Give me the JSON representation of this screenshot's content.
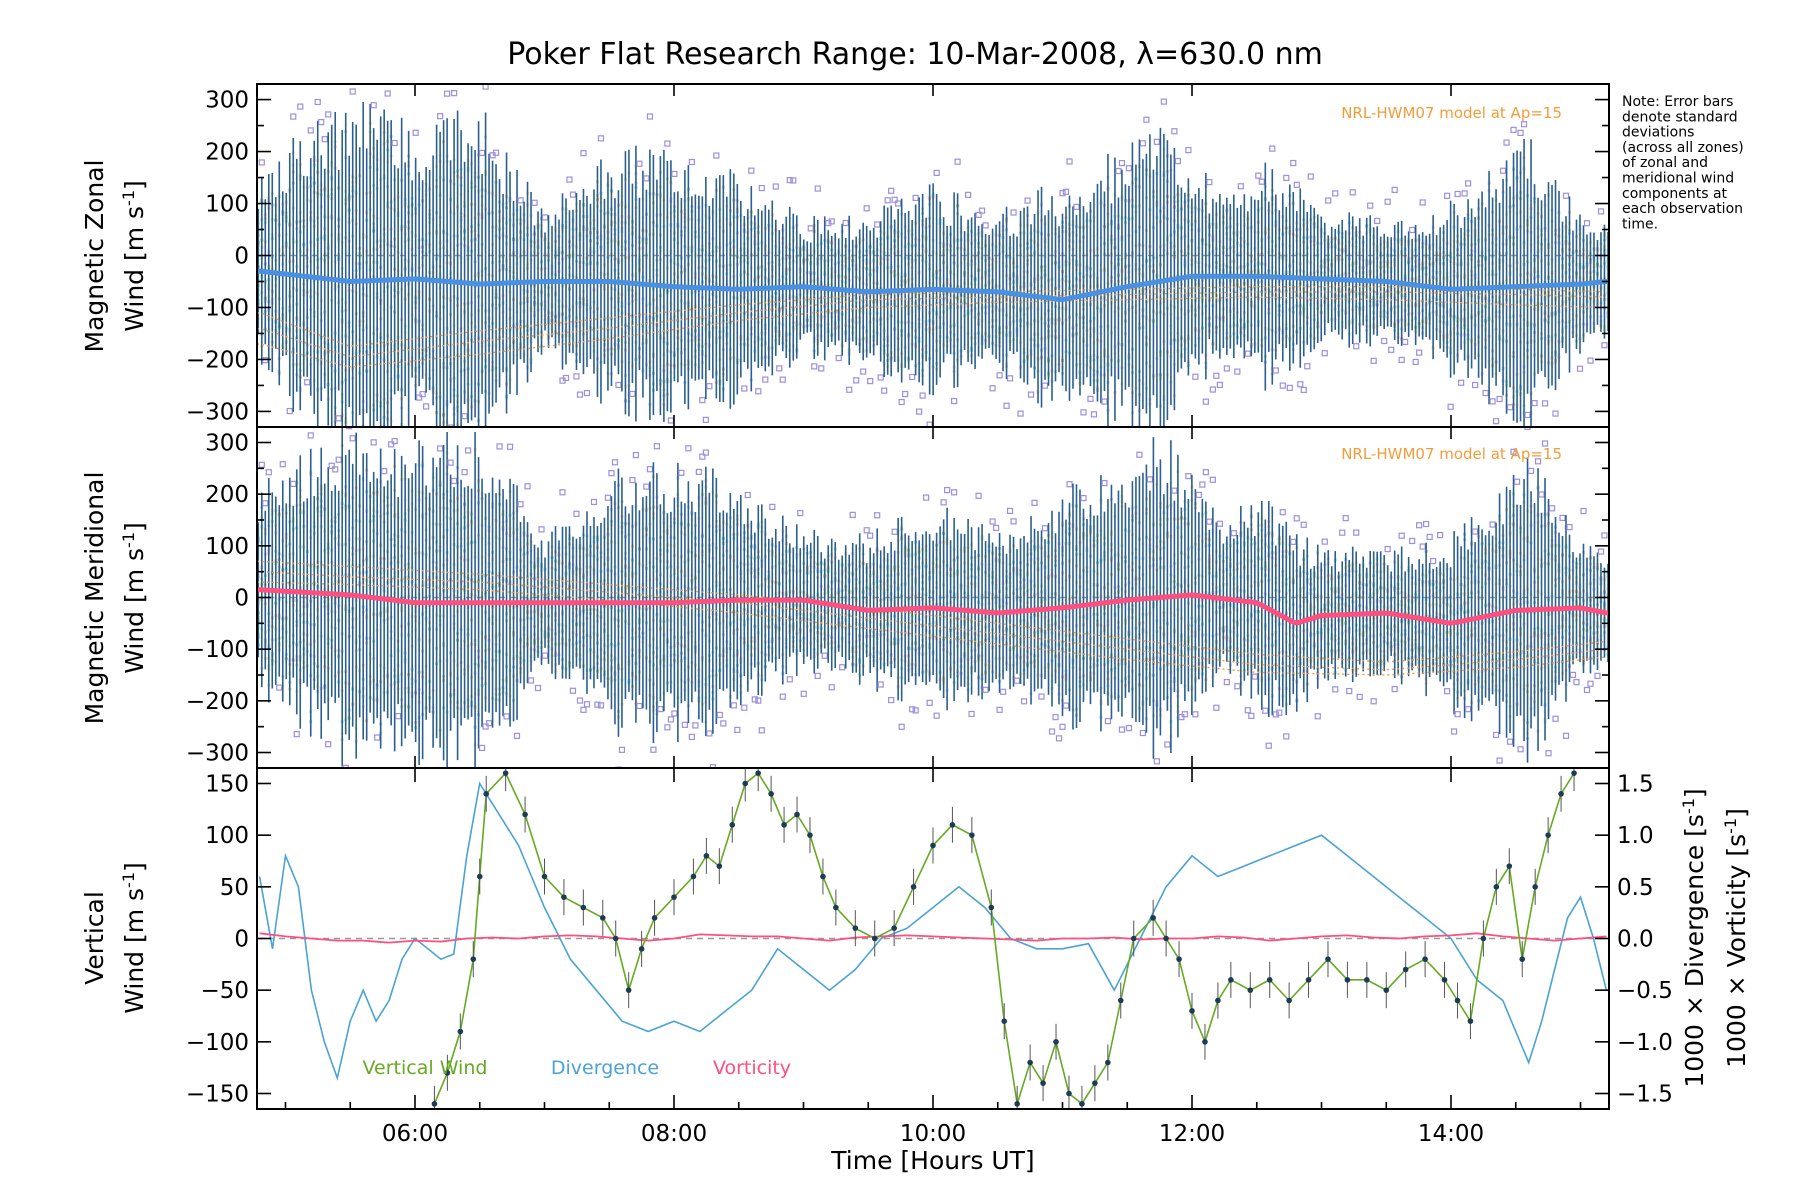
{
  "title": "Poker Flat Research Range: 10-Mar-2008, λ=630.0 nm",
  "note_lines": [
    "Note: Error bars",
    "denote standard",
    "deviations",
    "(across all zones)",
    "of zonal and",
    "meridional wind",
    "components at",
    "each observation",
    "time."
  ],
  "colors": {
    "zonal": "#4a90e2",
    "zonal_dark": "#2850c8",
    "meridional": "#ff4f7e",
    "vertical": "#66aa22",
    "divergence": "#4aa3d4",
    "vorticity": "#ff4f7e",
    "model": "#f39c3a",
    "outlier": "#9b8fe0",
    "errorbar": "#2a5f8f",
    "points": "#1e3b56"
  },
  "chart_data": [
    {
      "type": "scatter",
      "panel": "zonal",
      "ylabel_line1": "Magnetic Zonal",
      "ylabel_line2": "Wind [m s",
      "ylabel_sup": "-1",
      "ylabel_close": "]",
      "model_label": "NRL-HWM07 model at Ap=15",
      "xlim": [
        4.78,
        15.22
      ],
      "ylim": [
        -330,
        330
      ],
      "yticks": [
        -300,
        -200,
        -100,
        0,
        100,
        200,
        300
      ],
      "mean_series": {
        "name": "",
        "x": [
          4.8,
          5.5,
          6.0,
          6.5,
          7.0,
          7.5,
          8.0,
          8.5,
          9.0,
          9.5,
          10.0,
          10.5,
          11.0,
          11.5,
          12.0,
          12.5,
          13.0,
          13.5,
          14.0,
          14.5,
          15.0,
          15.2
        ],
        "y": [
          -30,
          -50,
          -45,
          -55,
          -50,
          -50,
          -60,
          -65,
          -60,
          -70,
          -65,
          -70,
          -85,
          -60,
          -40,
          -40,
          -45,
          -50,
          -65,
          -60,
          -55,
          -50
        ]
      },
      "spread_envelope": {
        "x": [
          4.8,
          5.2,
          5.6,
          6.0,
          6.5,
          7.0,
          7.5,
          8.0,
          8.5,
          9.0,
          9.5,
          10.0,
          10.5,
          11.0,
          11.5,
          11.8,
          12.2,
          12.6,
          13.0,
          13.5,
          14.0,
          14.6,
          15.0,
          15.2
        ],
        "y": [
          160,
          240,
          290,
          250,
          280,
          110,
          210,
          230,
          190,
          110,
          120,
          170,
          130,
          190,
          230,
          260,
          130,
          180,
          110,
          100,
          140,
          250,
          110,
          90
        ]
      },
      "model_curves": [
        {
          "x": [
            4.8,
            5.5,
            6.5,
            7.5,
            8.5,
            9.5,
            10.5,
            11.5,
            12.5,
            13.5,
            14.5,
            15.2
          ],
          "y": [
            -140,
            -195,
            -165,
            -140,
            -110,
            -85,
            -80,
            -75,
            -70,
            -70,
            -75,
            -80
          ]
        },
        {
          "x": [
            4.8,
            5.5,
            6.5,
            7.5,
            8.5,
            9.5,
            10.5,
            11.5,
            12.5,
            13.5,
            14.5,
            15.2
          ],
          "y": [
            -170,
            -215,
            -190,
            -160,
            -125,
            -100,
            -90,
            -85,
            -80,
            -85,
            -95,
            -100
          ]
        },
        {
          "x": [
            4.8,
            5.5,
            6.5,
            7.5,
            8.5,
            9.5,
            10.5,
            11.5,
            12.5,
            13.5,
            14.5,
            15.2
          ],
          "y": [
            -110,
            -175,
            -145,
            -120,
            -95,
            -75,
            -70,
            -65,
            -60,
            -60,
            -65,
            -70
          ]
        }
      ]
    },
    {
      "type": "scatter",
      "panel": "meridional",
      "ylabel_line1": "Magnetic Meridional",
      "ylabel_line2": "Wind [m s",
      "ylabel_sup": "-1",
      "ylabel_close": "]",
      "model_label": "NRL-HWM07 model at Ap=15",
      "xlim": [
        4.78,
        15.22
      ],
      "ylim": [
        -330,
        330
      ],
      "yticks": [
        -300,
        -200,
        -100,
        0,
        100,
        200,
        300
      ],
      "mean_series": {
        "name": "",
        "x": [
          4.8,
          5.5,
          6.0,
          6.5,
          7.0,
          7.5,
          8.0,
          8.5,
          9.0,
          9.5,
          10.0,
          10.5,
          11.0,
          11.5,
          12.0,
          12.5,
          12.8,
          13.0,
          13.5,
          14.0,
          14.5,
          15.0,
          15.2
        ],
        "y": [
          15,
          5,
          -10,
          -10,
          -10,
          -10,
          -10,
          -5,
          -5,
          -25,
          -20,
          -30,
          -20,
          -5,
          5,
          -10,
          -50,
          -35,
          -30,
          -50,
          -25,
          -20,
          -30
        ]
      },
      "spread_envelope": {
        "x": [
          4.8,
          5.2,
          5.6,
          6.0,
          6.5,
          7.0,
          7.5,
          8.0,
          8.5,
          9.0,
          9.5,
          10.0,
          10.5,
          11.0,
          11.5,
          11.8,
          12.2,
          12.6,
          13.0,
          13.5,
          14.0,
          14.6,
          15.0,
          15.2
        ],
        "y": [
          160,
          240,
          290,
          250,
          280,
          110,
          210,
          230,
          190,
          110,
          120,
          170,
          130,
          190,
          230,
          260,
          130,
          180,
          110,
          100,
          140,
          250,
          110,
          90
        ]
      },
      "model_curves": [
        {
          "x": [
            4.8,
            5.5,
            6.5,
            7.5,
            8.5,
            9.5,
            10.5,
            11.5,
            12.5,
            13.5,
            14.5,
            15.2
          ],
          "y": [
            50,
            40,
            30,
            10,
            -10,
            -40,
            -70,
            -100,
            -130,
            -140,
            -120,
            -100
          ]
        },
        {
          "x": [
            4.8,
            5.5,
            6.5,
            7.5,
            8.5,
            9.5,
            10.5,
            11.5,
            12.5,
            13.5,
            14.5,
            15.2
          ],
          "y": [
            30,
            25,
            15,
            -5,
            -30,
            -60,
            -90,
            -120,
            -145,
            -150,
            -135,
            -115
          ]
        },
        {
          "x": [
            4.8,
            5.5,
            6.5,
            7.5,
            8.5,
            9.5,
            10.5,
            11.5,
            12.5,
            13.5,
            14.5,
            15.2
          ],
          "y": [
            70,
            60,
            45,
            25,
            5,
            -20,
            -50,
            -80,
            -110,
            -125,
            -105,
            -85
          ]
        }
      ]
    },
    {
      "type": "line",
      "panel": "vertical",
      "ylabel_line1": "Vertical",
      "ylabel_line2": "Wind [m s",
      "ylabel_sup": "-1",
      "ylabel_close": "]",
      "xlabel": "Time [Hours UT]",
      "xlim": [
        4.78,
        15.22
      ],
      "xticks": [
        6,
        8,
        10,
        12,
        14
      ],
      "xtick_labels": [
        "06:00",
        "08:00",
        "10:00",
        "12:00",
        "14:00"
      ],
      "ylim": [
        -165,
        165
      ],
      "yticks": [
        -150,
        -100,
        -50,
        0,
        50,
        100,
        150
      ],
      "y2lim": [
        -1.65,
        1.65
      ],
      "y2ticks": [
        -1.5,
        -1.0,
        -0.5,
        0.0,
        0.5,
        1.0,
        1.5
      ],
      "y2tick_labels": [
        "-1.5",
        "-1.0",
        "-0.5",
        "0.0",
        "0.5",
        "1.0",
        "1.5"
      ],
      "y2label_div": "1000 × Divergence [s",
      "y2label_vor": "1000 × Vorticity [s",
      "y2label_sup": "-1",
      "y2label_close": "]",
      "legend": [
        "Vertical Wind",
        "Divergence",
        "Vorticity"
      ],
      "series": [
        {
          "name": "Vertical Wind",
          "x": [
            6.15,
            6.25,
            6.35,
            6.45,
            6.5,
            6.55,
            6.7,
            6.85,
            7.0,
            7.15,
            7.3,
            7.45,
            7.55,
            7.65,
            7.75,
            7.85,
            8.0,
            8.15,
            8.25,
            8.35,
            8.45,
            8.55,
            8.65,
            8.75,
            8.85,
            8.95,
            9.05,
            9.15,
            9.25,
            9.4,
            9.55,
            9.7,
            9.85,
            10.0,
            10.15,
            10.3,
            10.45,
            10.55,
            10.65,
            10.75,
            10.85,
            10.95,
            11.05,
            11.15,
            11.25,
            11.35,
            11.45,
            11.55,
            11.7,
            11.8,
            11.9,
            12.0,
            12.1,
            12.2,
            12.3,
            12.45,
            12.6,
            12.75,
            12.9,
            13.05,
            13.2,
            13.35,
            13.5,
            13.65,
            13.8,
            13.95,
            14.05,
            14.15,
            14.25,
            14.35,
            14.45,
            14.55,
            14.65,
            14.75,
            14.85,
            14.95
          ],
          "y": [
            -160,
            -130,
            -90,
            -20,
            60,
            140,
            160,
            120,
            60,
            40,
            30,
            20,
            0,
            -50,
            -10,
            20,
            40,
            60,
            80,
            70,
            110,
            150,
            160,
            140,
            110,
            120,
            100,
            60,
            30,
            10,
            0,
            10,
            50,
            90,
            110,
            100,
            30,
            -80,
            -160,
            -120,
            -140,
            -100,
            -150,
            -160,
            -140,
            -120,
            -60,
            0,
            20,
            0,
            -20,
            -70,
            -100,
            -60,
            -40,
            -50,
            -40,
            -60,
            -40,
            -20,
            -40,
            -40,
            -50,
            -30,
            -20,
            -40,
            -60,
            -80,
            0,
            50,
            70,
            -20,
            50,
            100,
            140,
            160
          ]
        },
        {
          "name": "Divergence",
          "x": [
            4.8,
            4.9,
            5.0,
            5.1,
            5.2,
            5.3,
            5.4,
            5.5,
            5.6,
            5.7,
            5.8,
            5.9,
            6.0,
            6.1,
            6.2,
            6.3,
            6.4,
            6.5,
            6.6,
            6.7,
            6.8,
            6.9,
            7.0,
            7.2,
            7.4,
            7.6,
            7.8,
            8.0,
            8.2,
            8.4,
            8.6,
            8.8,
            9.0,
            9.2,
            9.4,
            9.6,
            9.8,
            10.0,
            10.2,
            10.4,
            10.6,
            10.8,
            11.0,
            11.2,
            11.4,
            11.6,
            11.8,
            12.0,
            12.2,
            12.4,
            12.6,
            12.8,
            13.0,
            13.2,
            13.4,
            13.6,
            13.8,
            14.0,
            14.2,
            14.4,
            14.6,
            14.7,
            14.8,
            14.9,
            15.0,
            15.1,
            15.2
          ],
          "y": [
            0.6,
            -0.1,
            0.8,
            0.5,
            -0.5,
            -1.0,
            -1.35,
            -0.8,
            -0.5,
            -0.8,
            -0.6,
            -0.2,
            0.0,
            -0.1,
            -0.2,
            -0.15,
            0.8,
            1.5,
            1.3,
            1.1,
            0.9,
            0.6,
            0.3,
            -0.2,
            -0.5,
            -0.8,
            -0.9,
            -0.8,
            -0.9,
            -0.7,
            -0.5,
            -0.1,
            -0.3,
            -0.5,
            -0.3,
            0.0,
            0.1,
            0.3,
            0.5,
            0.3,
            0.0,
            -0.1,
            -0.1,
            -0.05,
            -0.5,
            0.0,
            0.5,
            0.8,
            0.6,
            0.7,
            0.8,
            0.9,
            1.0,
            0.8,
            0.6,
            0.4,
            0.2,
            0.0,
            -0.4,
            -0.6,
            -1.2,
            -0.8,
            -0.3,
            0.2,
            0.4,
            0.0,
            -0.5
          ]
        },
        {
          "name": "Vorticity",
          "x": [
            4.8,
            5.0,
            5.2,
            5.4,
            5.6,
            5.8,
            6.0,
            6.2,
            6.4,
            6.6,
            6.8,
            7.0,
            7.2,
            7.4,
            7.6,
            7.8,
            8.0,
            8.2,
            8.4,
            8.6,
            8.8,
            9.0,
            9.2,
            9.4,
            9.6,
            9.8,
            10.0,
            10.2,
            10.4,
            10.6,
            10.8,
            11.0,
            11.2,
            11.4,
            11.6,
            11.8,
            12.0,
            12.2,
            12.4,
            12.6,
            12.8,
            13.0,
            13.2,
            13.4,
            13.6,
            13.8,
            14.0,
            14.2,
            14.4,
            14.6,
            14.8,
            15.0,
            15.2
          ],
          "y": [
            0.05,
            0.02,
            0.0,
            -0.02,
            -0.02,
            -0.04,
            -0.02,
            -0.03,
            0.0,
            0.01,
            0.0,
            0.02,
            0.03,
            0.02,
            0.0,
            -0.02,
            0.0,
            0.04,
            0.03,
            0.02,
            0.02,
            0.0,
            -0.02,
            0.01,
            0.02,
            0.03,
            0.02,
            0.01,
            0.0,
            -0.01,
            -0.02,
            0.0,
            0.0,
            0.01,
            -0.01,
            0.0,
            0.0,
            0.02,
            0.01,
            -0.02,
            0.0,
            0.02,
            0.03,
            0.01,
            0.0,
            0.02,
            0.03,
            0.05,
            0.02,
            0.0,
            -0.02,
            0.0,
            0.02
          ]
        }
      ]
    }
  ]
}
